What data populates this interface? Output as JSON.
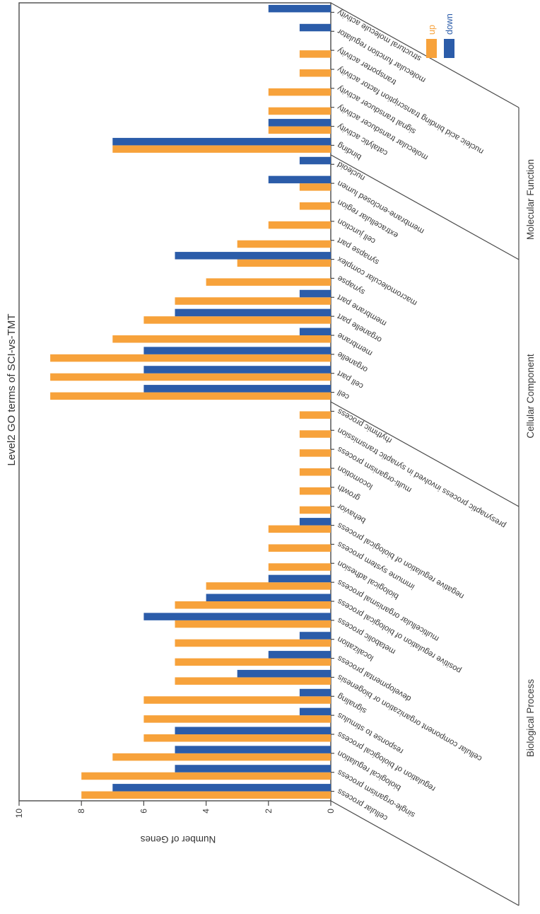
{
  "page": {
    "title": "Level2 GO terms of SCI-vs-TMT"
  },
  "style": {
    "up_color": "#F7A23B",
    "down_color": "#2B5CA9",
    "axis_color": "#4a4a4a",
    "text_color": "#3a3a3a",
    "background": "#ffffff"
  },
  "chart_data": {
    "type": "bar",
    "title": "Level2 GO terms of SCI-vs-TMT",
    "ylabel": "Number of Genes",
    "ylim": [
      0,
      10
    ],
    "yticks": [
      0,
      2,
      4,
      6,
      8,
      10
    ],
    "grid": false,
    "page_rotation": "chart drawn landscape, rotated 90 degrees counter-clockwise on page",
    "legend_position": "outside plot, right side",
    "series": [
      {
        "name": "up",
        "color": "#F7A23B"
      },
      {
        "name": "down",
        "color": "#2B5CA9"
      }
    ],
    "groups": [
      {
        "name": "Biological Process",
        "items": [
          {
            "label": "cellular process",
            "up": 8,
            "down": 7
          },
          {
            "label": "single-organism process",
            "up": 8,
            "down": 5
          },
          {
            "label": "biological regulation",
            "up": 7,
            "down": 5
          },
          {
            "label": "regulation of biological process",
            "up": 6,
            "down": 5
          },
          {
            "label": "response to stimulus",
            "up": 6,
            "down": 1
          },
          {
            "label": "signaling",
            "up": 6,
            "down": 1
          },
          {
            "label": "cellular component organization or biogenesis",
            "up": 5,
            "down": 3
          },
          {
            "label": "developmental process",
            "up": 5,
            "down": 2
          },
          {
            "label": "localization",
            "up": 5,
            "down": 1
          },
          {
            "label": "metabolic process",
            "up": 5,
            "down": 6
          },
          {
            "label": "positive regulation of biological process",
            "up": 5,
            "down": 4
          },
          {
            "label": "multicellular organismal process",
            "up": 4,
            "down": 2
          },
          {
            "label": "biological adhesion",
            "up": 2,
            "down": 0
          },
          {
            "label": "immune system process",
            "up": 2,
            "down": 0
          },
          {
            "label": "negative regulation of biological process",
            "up": 2,
            "down": 1
          },
          {
            "label": "behavior",
            "up": 1,
            "down": 0
          },
          {
            "label": "growth",
            "up": 1,
            "down": 0
          },
          {
            "label": "locomotion",
            "up": 1,
            "down": 0
          },
          {
            "label": "multi-organism process",
            "up": 1,
            "down": 0
          },
          {
            "label": "presynaptic process involved in synaptic transmission",
            "up": 1,
            "down": 0
          },
          {
            "label": "rhythmic process",
            "up": 1,
            "down": 0
          }
        ]
      },
      {
        "name": "Cellular Component",
        "items": [
          {
            "label": "cell",
            "up": 9,
            "down": 6
          },
          {
            "label": "cell part",
            "up": 9,
            "down": 6
          },
          {
            "label": "organelle",
            "up": 9,
            "down": 6
          },
          {
            "label": "membrane",
            "up": 7,
            "down": 1
          },
          {
            "label": "organelle part",
            "up": 6,
            "down": 5
          },
          {
            "label": "membrane part",
            "up": 5,
            "down": 1
          },
          {
            "label": "synapse",
            "up": 4,
            "down": 0
          },
          {
            "label": "macromolecular complex",
            "up": 3,
            "down": 5
          },
          {
            "label": "synapse part",
            "up": 3,
            "down": 0
          },
          {
            "label": "cell junction",
            "up": 2,
            "down": 0
          },
          {
            "label": "extracellular region",
            "up": 1,
            "down": 0
          },
          {
            "label": "membrane-enclosed lumen",
            "up": 1,
            "down": 2
          },
          {
            "label": "nucleoid",
            "up": 0,
            "down": 1
          }
        ]
      },
      {
        "name": "Molecular Function",
        "items": [
          {
            "label": "binding",
            "up": 7,
            "down": 7
          },
          {
            "label": "catalytic activity",
            "up": 2,
            "down": 2
          },
          {
            "label": "molecular transducer activity",
            "up": 2,
            "down": 0
          },
          {
            "label": "signal transducer activity",
            "up": 2,
            "down": 0
          },
          {
            "label": "nucleic acid binding transcription factor activity",
            "up": 1,
            "down": 0
          },
          {
            "label": "transporter activity",
            "up": 1,
            "down": 0
          },
          {
            "label": "molecular function regulator",
            "up": 0,
            "down": 1
          },
          {
            "label": "structural molecule activity",
            "up": 0,
            "down": 2
          }
        ]
      }
    ]
  }
}
